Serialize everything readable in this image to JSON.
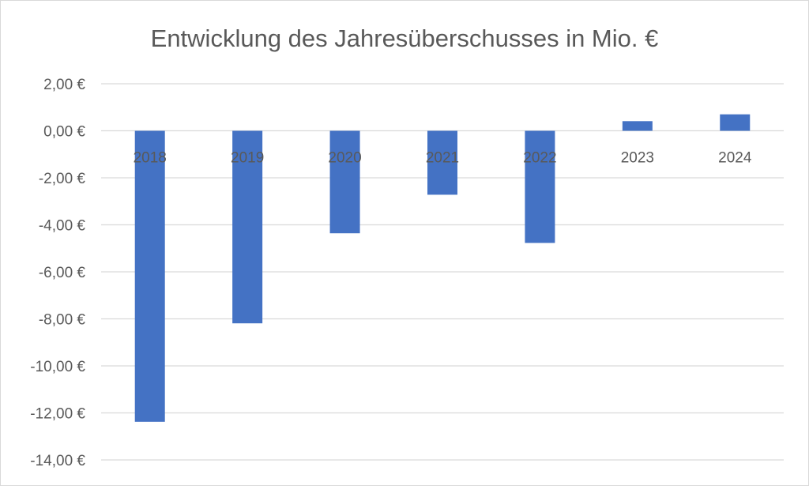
{
  "chart_data": {
    "type": "bar",
    "title": "Entwicklung des Jahresüberschusses in Mio. €",
    "categories": [
      "2018",
      "2019",
      "2020",
      "2021",
      "2022",
      "2023",
      "2024"
    ],
    "values": [
      -12.38,
      -8.19,
      -4.36,
      -2.72,
      -4.77,
      0.41,
      0.7
    ],
    "ylim": [
      -14,
      2
    ],
    "yticks": [
      2,
      0,
      -2,
      -4,
      -6,
      -8,
      -10,
      -12,
      -14
    ],
    "ytick_labels": [
      "2,00 €",
      "0,00 €",
      "-2,00 €",
      "-4,00 €",
      "-6,00 €",
      "-8,00 €",
      "-10,00 €",
      "-12,00 €",
      "-14,00 €"
    ],
    "xlabel": "",
    "ylabel": "",
    "grid": true,
    "legend": "none",
    "colors": {
      "bar": "#4472C4",
      "grid": "#d9d9d9",
      "text": "#595959"
    }
  }
}
